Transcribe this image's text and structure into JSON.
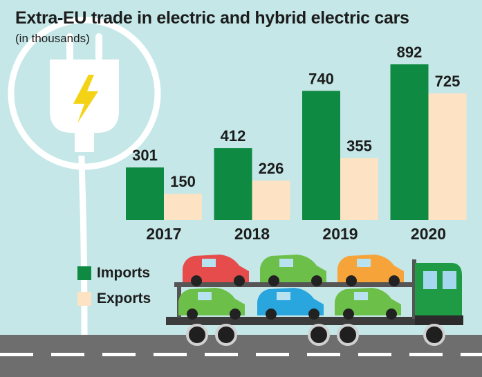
{
  "title": "Extra-EU trade in electric and hybrid electric cars",
  "subtitle": "(in thousands)",
  "colors": {
    "background": "#c5e7e8",
    "imports": "#0f8a43",
    "exports": "#fde3c3",
    "road": "#6e6e6e",
    "road_line": "#ffffff"
  },
  "icons": [
    "power-plug-icon",
    "lightning-bolt-icon",
    "car-carrier-truck-icon"
  ],
  "legend": {
    "imports_label": "Imports",
    "exports_label": "Exports",
    "placement": "bottom-left"
  },
  "chart_data": {
    "type": "bar",
    "title": "Extra-EU trade in electric and hybrid electric cars",
    "subtitle": "(in thousands)",
    "categories": [
      "2017",
      "2018",
      "2019",
      "2020"
    ],
    "series": [
      {
        "name": "Imports",
        "values": [
          301,
          412,
          740,
          892
        ],
        "color": "#0f8a43"
      },
      {
        "name": "Exports",
        "values": [
          150,
          226,
          355,
          725
        ],
        "color": "#fde3c3"
      }
    ],
    "data_labels": true,
    "grid": false,
    "ylim": [
      0,
      892
    ]
  }
}
